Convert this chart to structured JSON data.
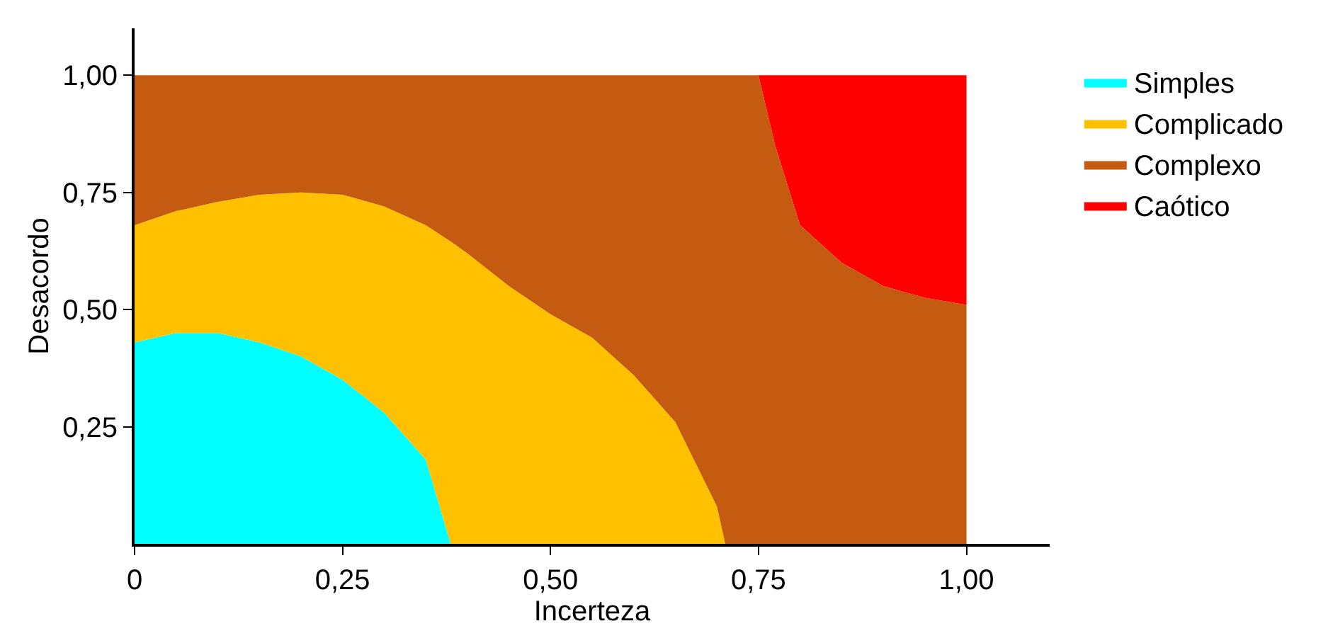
{
  "chart_data": {
    "type": "area",
    "stacked": true,
    "xlabel": "Incerteza",
    "ylabel": "Desacordo",
    "x": [
      0,
      0.05,
      0.1,
      0.15,
      0.2,
      0.25,
      0.3,
      0.35,
      0.38,
      0.4,
      0.45,
      0.5,
      0.55,
      0.6,
      0.65,
      0.7,
      0.71,
      0.75,
      0.77,
      0.8,
      0.85,
      0.9,
      0.95,
      1.0
    ],
    "series": [
      {
        "name": "Simples",
        "color": "#00ffff",
        "values": [
          0.43,
          0.45,
          0.45,
          0.43,
          0.4,
          0.35,
          0.28,
          0.18,
          0,
          0,
          0,
          0,
          0,
          0,
          0,
          0,
          0,
          0,
          0,
          0,
          0,
          0,
          0,
          0
        ]
      },
      {
        "name": "Complicado",
        "color": "#ffc000",
        "values": [
          0.25,
          0.26,
          0.28,
          0.315,
          0.35,
          0.395,
          0.44,
          0.5,
          0.645,
          0.62,
          0.55,
          0.49,
          0.44,
          0.36,
          0.26,
          0.08,
          0,
          0,
          0,
          0,
          0,
          0,
          0,
          0
        ]
      },
      {
        "name": "Complexo",
        "color": "#c55a11",
        "values": [
          0.32,
          0.29,
          0.27,
          0.255,
          0.25,
          0.255,
          0.28,
          0.32,
          0.355,
          0.38,
          0.45,
          0.51,
          0.56,
          0.64,
          0.74,
          0.92,
          1.0,
          1.0,
          0.85,
          0.68,
          0.6,
          0.55,
          0.525,
          0.51
        ]
      },
      {
        "name": "Caótico",
        "color": "#ff0000",
        "values": [
          0,
          0,
          0,
          0,
          0,
          0,
          0,
          0,
          0,
          0,
          0,
          0,
          0,
          0,
          0,
          0,
          0,
          0,
          0.15,
          0.32,
          0.4,
          0.45,
          0.475,
          0.49
        ]
      }
    ],
    "xlim": [
      0,
      1.1
    ],
    "ylim": [
      0,
      1.1
    ],
    "xticks": [
      {
        "value": 0,
        "label": "0"
      },
      {
        "value": 0.25,
        "label": "0,25"
      },
      {
        "value": 0.5,
        "label": "0,50"
      },
      {
        "value": 0.75,
        "label": "0,75"
      },
      {
        "value": 1.0,
        "label": "1,00"
      }
    ],
    "yticks": [
      {
        "value": 0.25,
        "label": "0,25"
      },
      {
        "value": 0.5,
        "label": "0,50"
      },
      {
        "value": 0.75,
        "label": "0,75"
      },
      {
        "value": 1.0,
        "label": "1,00"
      }
    ],
    "legend": "right"
  }
}
